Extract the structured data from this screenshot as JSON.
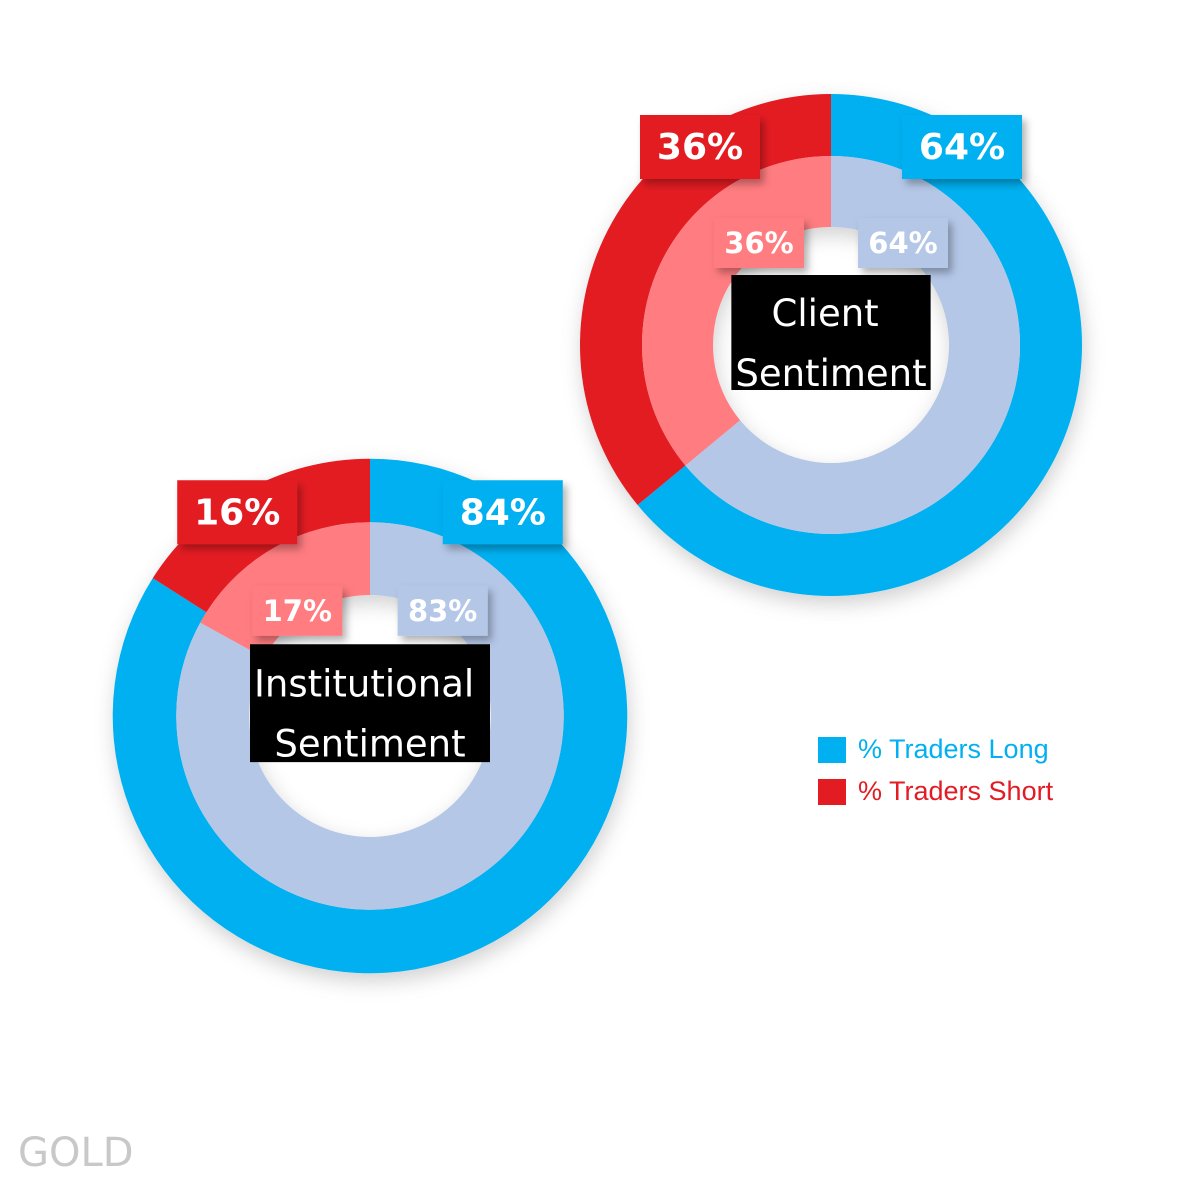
{
  "asset": "GOLD",
  "chart_data": [
    {
      "type": "donut",
      "title": "Client Sentiment",
      "series": [
        {
          "name": "% Traders Long",
          "colors": [
            "#00b0f0",
            "#b4c7e7"
          ],
          "values": [
            64,
            64
          ],
          "value_labels": [
            "64%",
            "64%"
          ]
        },
        {
          "name": "% Traders Short",
          "colors": [
            "#e31b23",
            "#ff7c80"
          ],
          "values": [
            36,
            36
          ],
          "value_labels": [
            "36%",
            "36%"
          ]
        }
      ],
      "legend": "right"
    },
    {
      "type": "donut",
      "title": "Institutional Sentiment",
      "series": [
        {
          "colors": [
            "#00b0f0",
            "#b4c7e7"
          ],
          "values": [
            84,
            83
          ],
          "value_labels": [
            "84%",
            "83%"
          ]
        },
        {
          "colors": [
            "#e31b23",
            "#ff7c80"
          ],
          "values": [
            16,
            17
          ],
          "value_labels": [
            "16%",
            "17%"
          ]
        }
      ]
    }
  ]
}
